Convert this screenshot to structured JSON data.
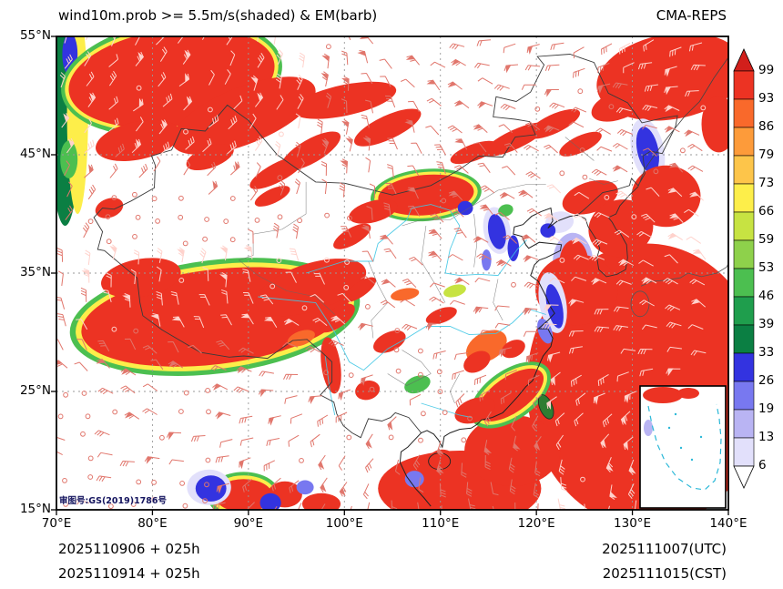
{
  "header": {
    "title_left": "wind10m.prob >= 5.5m/s(shaded) & EM(barb)",
    "title_right": "CMA-REPS"
  },
  "axes": {
    "x_ticks": [
      {
        "label": "70°E",
        "lon": 70
      },
      {
        "label": "80°E",
        "lon": 80
      },
      {
        "label": "90°E",
        "lon": 90
      },
      {
        "label": "100°E",
        "lon": 100
      },
      {
        "label": "110°E",
        "lon": 110
      },
      {
        "label": "120°E",
        "lon": 120
      },
      {
        "label": "130°E",
        "lon": 130
      },
      {
        "label": "140°E",
        "lon": 140
      }
    ],
    "y_ticks": [
      {
        "label": "55°N",
        "lat": 55
      },
      {
        "label": "45°N",
        "lat": 45
      },
      {
        "label": "35°N",
        "lat": 35
      },
      {
        "label": "25°N",
        "lat": 25
      },
      {
        "label": "15°N",
        "lat": 15
      }
    ],
    "lon_range": [
      70,
      140
    ],
    "lat_range": [
      15,
      55
    ]
  },
  "colorbar": {
    "labels": [
      99,
      93,
      86,
      79,
      73,
      66,
      59,
      53,
      46,
      39,
      33,
      26,
      19,
      13,
      6
    ],
    "colors_top_to_bottom": [
      "#d21f1b",
      "#ec3323",
      "#f9692b",
      "#fd9b3a",
      "#fdc54a",
      "#fdee4a",
      "#c7e342",
      "#8ed14b",
      "#4cbf50",
      "#1f9e4d",
      "#0b7f43",
      "#3333e0",
      "#7878f0",
      "#b9b4f3",
      "#e2e0fb",
      "#ffffff"
    ]
  },
  "footer": {
    "left_line1": "2025110906 + 025h",
    "left_line2": "2025110914 + 025h",
    "right_line1": "2025111007(UTC)",
    "right_line2": "2025111015(CST)"
  },
  "map_license": "审图号:GS(2019)1786号",
  "chart_data": {
    "type": "heatmap",
    "title": "wind10m.prob >= 5.5m/s(shaded) & EM(barb)",
    "model": "CMA-REPS",
    "field": "probability of 10 m wind >= 5.5 m/s",
    "units": "%",
    "overlay": "ensemble-mean wind barbs",
    "init_utc": "2025110906",
    "init_cst": "2025110914",
    "fcst_hour": "025h",
    "valid_utc": "2025111007",
    "valid_cst": "2025111015",
    "levels": [
      6,
      13,
      19,
      26,
      33,
      39,
      46,
      53,
      59,
      66,
      73,
      79,
      86,
      93,
      99
    ],
    "lon_range": [
      70,
      140
    ],
    "lat_range": [
      15,
      55
    ],
    "grid_lons": [
      80,
      90,
      100,
      110,
      120,
      130
    ],
    "grid_lats": [
      25,
      35,
      45
    ],
    "regions": [
      [
        70.9,
        49.5,
        1.7,
        10.5,
        0,
        36
      ],
      [
        72.2,
        48.5,
        1.1,
        8.5,
        0,
        70
      ],
      [
        71.4,
        53.5,
        0.8,
        1.8,
        0,
        28
      ],
      [
        71.3,
        44.6,
        0.9,
        1.6,
        0,
        48
      ],
      [
        82,
        51.5,
        11.6,
        4.8,
        -8,
        48
      ],
      [
        82,
        51.5,
        11.2,
        4.4,
        -8,
        70
      ],
      [
        82,
        51.5,
        10.8,
        4.1,
        -8,
        95
      ],
      [
        89.5,
        48.3,
        8.0,
        2.4,
        -22,
        95
      ],
      [
        78.5,
        46.2,
        4.5,
        1.6,
        -12,
        95
      ],
      [
        86,
        44.8,
        2.6,
        0.9,
        -20,
        95
      ],
      [
        93,
        43.5,
        3.2,
        0.8,
        -28,
        95
      ],
      [
        96.5,
        45.3,
        3.5,
        1.0,
        -30,
        95
      ],
      [
        100,
        49.6,
        5.5,
        1.3,
        -12,
        95
      ],
      [
        104.5,
        47.3,
        3.8,
        1.0,
        -25,
        95
      ],
      [
        92.5,
        41.5,
        2.0,
        0.6,
        -25,
        95
      ],
      [
        75.5,
        40.5,
        1.5,
        0.8,
        -20,
        95
      ],
      [
        86.5,
        31.3,
        15.2,
        4.8,
        -7,
        48
      ],
      [
        86.5,
        31.3,
        14.6,
        4.4,
        -7,
        70
      ],
      [
        86.5,
        31.3,
        14.0,
        4.0,
        -7,
        95
      ],
      [
        96.5,
        33.8,
        6.0,
        2.0,
        -18,
        95
      ],
      [
        78.8,
        34.6,
        4.2,
        1.6,
        -10,
        95
      ],
      [
        99.2,
        31.2,
        2.2,
        0.8,
        -35,
        95
      ],
      [
        101.6,
        33.6,
        2.0,
        0.6,
        -35,
        95
      ],
      [
        98.6,
        27.2,
        1.0,
        2.4,
        -8,
        95
      ],
      [
        95.5,
        29.5,
        1.5,
        0.6,
        -20,
        88
      ],
      [
        108.5,
        41.6,
        5.8,
        2.2,
        -5,
        48
      ],
      [
        108.5,
        41.6,
        5.4,
        1.95,
        -5,
        70
      ],
      [
        108.5,
        41.6,
        5.0,
        1.7,
        -5,
        95
      ],
      [
        103,
        40.2,
        2.6,
        0.9,
        -15,
        95
      ],
      [
        100.8,
        38.1,
        2.2,
        0.7,
        -30,
        95
      ],
      [
        112.6,
        40.5,
        0.8,
        0.6,
        0,
        28
      ],
      [
        117.8,
        46.3,
        3.6,
        0.8,
        -25,
        95
      ],
      [
        121.8,
        47.6,
        3.0,
        0.8,
        -25,
        95
      ],
      [
        124.6,
        45.9,
        2.4,
        0.7,
        -25,
        95
      ],
      [
        113.5,
        45.2,
        2.6,
        0.7,
        -20,
        95
      ],
      [
        134,
        51.6,
        7.8,
        3.6,
        -10,
        95
      ],
      [
        128.6,
        49.2,
        3.0,
        1.2,
        -20,
        95
      ],
      [
        139,
        47.6,
        1.8,
        2.4,
        0,
        95
      ],
      [
        131.6,
        45.4,
        1.7,
        2.7,
        -12,
        9
      ],
      [
        131.6,
        45.4,
        1.1,
        2.0,
        -12,
        28
      ],
      [
        115.9,
        38.6,
        1.4,
        2.0,
        -10,
        9
      ],
      [
        115.9,
        38.5,
        0.9,
        1.5,
        -10,
        28
      ],
      [
        117.6,
        37.1,
        0.6,
        1.1,
        0,
        28
      ],
      [
        114.8,
        36.1,
        0.5,
        0.9,
        0,
        22
      ],
      [
        116.8,
        40.3,
        0.8,
        0.5,
        -20,
        48
      ],
      [
        122.4,
        39.3,
        1.5,
        0.9,
        -10,
        9
      ],
      [
        121.2,
        38.6,
        0.8,
        0.6,
        0,
        28
      ],
      [
        123.8,
        35.9,
        2.1,
        2.5,
        0,
        15
      ],
      [
        123.9,
        35.9,
        1.5,
        1.9,
        0,
        95
      ],
      [
        125.6,
        41.4,
        3.0,
        1.3,
        -18,
        95
      ],
      [
        131.5,
        25.5,
        12.5,
        12.0,
        0,
        95
      ],
      [
        124.2,
        33.6,
        4.3,
        3.0,
        0,
        95
      ],
      [
        128.8,
        38.8,
        3.4,
        2.4,
        -15,
        95
      ],
      [
        133.5,
        41.5,
        3.6,
        2.6,
        0,
        95
      ],
      [
        121.7,
        32.5,
        1.4,
        2.6,
        -10,
        9
      ],
      [
        121.9,
        32.2,
        0.8,
        1.9,
        -12,
        28
      ],
      [
        120.9,
        30.1,
        0.7,
        1.1,
        -20,
        22
      ],
      [
        112,
        16.8,
        8.5,
        3.2,
        0,
        95
      ],
      [
        117.5,
        20,
        5.0,
        3.0,
        0,
        95
      ],
      [
        117.3,
        24.7,
        4.8,
        2.1,
        -35,
        48
      ],
      [
        117.3,
        24.7,
        4.4,
        1.8,
        -35,
        70
      ],
      [
        117.3,
        24.7,
        4.0,
        1.5,
        -35,
        95
      ],
      [
        113.6,
        23.4,
        2.2,
        1.0,
        -20,
        95
      ],
      [
        110.2,
        19.2,
        1.4,
        0.9,
        0,
        95
      ],
      [
        107.3,
        17.6,
        1.0,
        0.7,
        0,
        22
      ],
      [
        114.8,
        28.8,
        2.3,
        1.2,
        -30,
        88
      ],
      [
        113.8,
        27.5,
        1.5,
        0.8,
        -30,
        95
      ],
      [
        117.6,
        28.6,
        1.3,
        0.7,
        -25,
        95
      ],
      [
        110.1,
        31.4,
        1.7,
        0.6,
        -20,
        95
      ],
      [
        104.7,
        29.2,
        1.8,
        0.8,
        -25,
        95
      ],
      [
        107.6,
        25.6,
        1.4,
        0.7,
        -20,
        48
      ],
      [
        102.4,
        25.1,
        1.3,
        0.8,
        -15,
        95
      ],
      [
        111.5,
        33.5,
        1.2,
        0.5,
        -15,
        62
      ],
      [
        106.3,
        33.2,
        1.5,
        0.5,
        -10,
        88
      ],
      [
        89.5,
        16.2,
        3.8,
        2.0,
        0,
        48
      ],
      [
        89.5,
        16.2,
        3.4,
        1.7,
        0,
        70
      ],
      [
        89.5,
        16.2,
        3.0,
        1.4,
        0,
        95
      ],
      [
        85.9,
        16.9,
        2.3,
        1.5,
        0,
        9
      ],
      [
        86.1,
        16.8,
        1.6,
        1.1,
        0,
        28
      ],
      [
        93.8,
        16.3,
        1.8,
        1.1,
        0,
        95
      ],
      [
        92.3,
        15.6,
        1.1,
        0.8,
        0,
        28
      ],
      [
        97.6,
        15.5,
        2.0,
        0.9,
        0,
        95
      ],
      [
        95.9,
        16.9,
        0.9,
        0.6,
        0,
        22
      ]
    ]
  }
}
